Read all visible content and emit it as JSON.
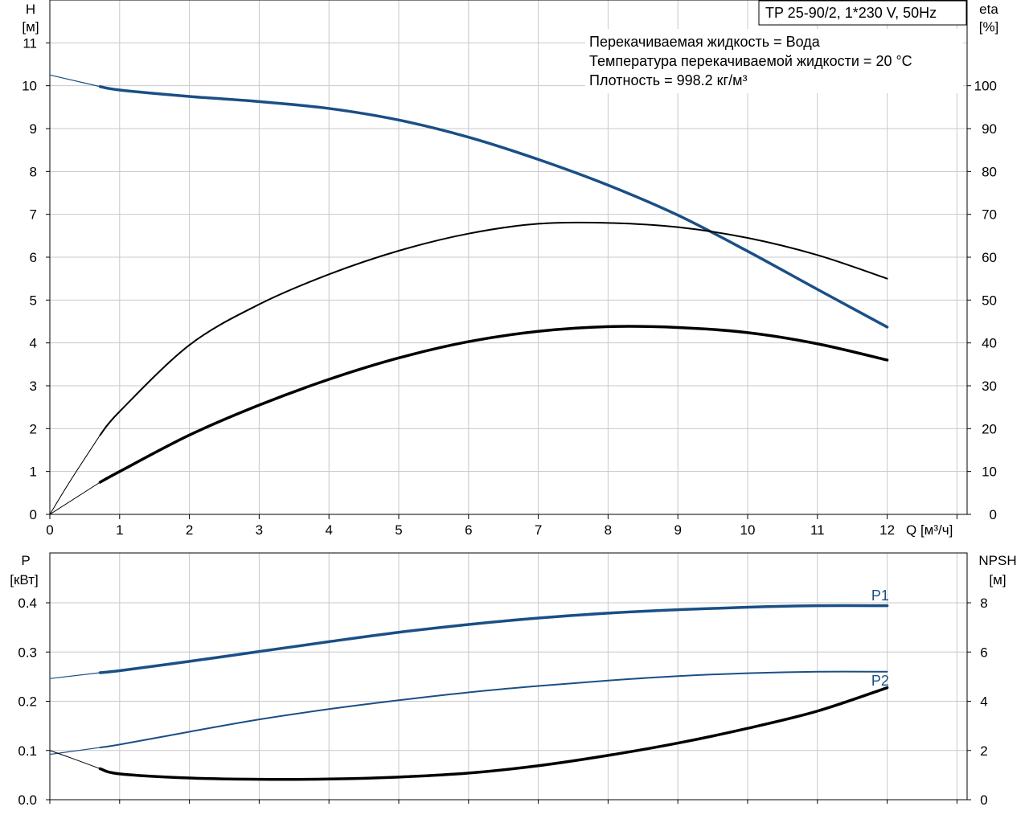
{
  "colors": {
    "blue": "#1a4f86",
    "black": "#000000",
    "grid": "#c8c8c8"
  },
  "header": {
    "model": "TP 25-90/2, 1*230 V, 50Hz",
    "info": [
      "Перекачиваемая жидкость = Вода",
      "Температура перекачиваемой жидкости = 20 °C",
      "Плотность = 998.2 кг/м³"
    ]
  },
  "chart_data": [
    {
      "type": "line",
      "name": "head-efficiency",
      "xlabel": "Q [м³/ч]",
      "ylabel_left": [
        "H",
        "[м]"
      ],
      "ylabel_right": [
        "eta",
        "[%]"
      ],
      "xlim": [
        0,
        13
      ],
      "ylim_left": [
        0,
        12
      ],
      "ylim_right": [
        0,
        120
      ],
      "x_ticks": [
        0,
        1,
        2,
        3,
        4,
        5,
        6,
        7,
        8,
        9,
        10,
        11,
        12
      ],
      "y_ticks_left": [
        0,
        1,
        2,
        3,
        4,
        5,
        6,
        7,
        8,
        9,
        10,
        11
      ],
      "y_ticks_right": [
        0,
        10,
        20,
        30,
        40,
        50,
        60,
        70,
        80,
        90,
        100
      ],
      "grid": true,
      "series": [
        {
          "key": "H_ext",
          "axis": "left",
          "color": "#1a4f86",
          "width": 1.2,
          "x": [
            0,
            0.72
          ],
          "y": [
            10.25,
            9.98
          ]
        },
        {
          "key": "H",
          "axis": "left",
          "color": "#1a4f86",
          "width": 3.5,
          "x": [
            0.72,
            1,
            2,
            3,
            4,
            5,
            6,
            7,
            8,
            9,
            10,
            11,
            12
          ],
          "y": [
            9.98,
            9.9,
            9.75,
            9.63,
            9.47,
            9.2,
            8.8,
            8.28,
            7.68,
            6.98,
            6.14,
            5.25,
            4.37
          ]
        },
        {
          "key": "eta_thin_ext",
          "axis": "right",
          "color": "#000000",
          "width": 1.0,
          "x": [
            0,
            0.3,
            0.72
          ],
          "y": [
            0,
            8,
            18.5
          ]
        },
        {
          "key": "eta_thin",
          "axis": "right",
          "color": "#000000",
          "width": 2.0,
          "x": [
            0.72,
            1,
            2,
            3,
            4,
            5,
            6,
            7,
            8,
            9,
            10,
            11,
            12
          ],
          "y": [
            18.5,
            24,
            39.5,
            49,
            56,
            61.5,
            65.5,
            67.8,
            68,
            67,
            64.5,
            60.5,
            55
          ]
        },
        {
          "key": "eta_thick_ext",
          "axis": "right",
          "color": "#000000",
          "width": 1.0,
          "x": [
            0,
            0.72
          ],
          "y": [
            0,
            7.5
          ]
        },
        {
          "key": "eta_thick",
          "axis": "right",
          "color": "#000000",
          "width": 3.5,
          "x": [
            0.72,
            1,
            2,
            3,
            4,
            5,
            6,
            7,
            8,
            9,
            10,
            11,
            12
          ],
          "y": [
            7.5,
            10,
            18.5,
            25.5,
            31.5,
            36.5,
            40.3,
            42.7,
            43.8,
            43.6,
            42.4,
            39.8,
            36
          ]
        }
      ]
    },
    {
      "type": "line",
      "name": "power-npsh",
      "xlim": [
        0,
        13
      ],
      "ylim_left": [
        0,
        0.5
      ],
      "ylim_right": [
        0,
        10
      ],
      "ylabel_left": [
        "P",
        "[кВт]"
      ],
      "ylabel_right": [
        "NPSH",
        "[м]"
      ],
      "y_ticks_left": [
        0.0,
        0.1,
        0.2,
        0.3,
        0.4
      ],
      "y_ticks_left_labels": [
        "0.0",
        "0.1",
        "0.2",
        "0.3",
        "0.4"
      ],
      "y_ticks_right": [
        0,
        2,
        4,
        6,
        8
      ],
      "grid": true,
      "series": [
        {
          "key": "P1_ext",
          "axis": "left",
          "color": "#1a4f86",
          "width": 1.2,
          "x": [
            0,
            0.72
          ],
          "y": [
            0.246,
            0.258
          ]
        },
        {
          "key": "P1",
          "axis": "left",
          "color": "#1a4f86",
          "width": 3.5,
          "name": "P1",
          "x": [
            0.72,
            1,
            2,
            3,
            4,
            5,
            6,
            7,
            8,
            9,
            10,
            11,
            12
          ],
          "y": [
            0.258,
            0.262,
            0.281,
            0.301,
            0.321,
            0.34,
            0.356,
            0.369,
            0.379,
            0.386,
            0.391,
            0.394,
            0.394
          ]
        },
        {
          "key": "P2_ext",
          "axis": "left",
          "color": "#1a4f86",
          "width": 1.2,
          "x": [
            0,
            0.72
          ],
          "y": [
            0.092,
            0.106
          ]
        },
        {
          "key": "P2",
          "axis": "left",
          "color": "#1a4f86",
          "width": 2.0,
          "name": "P2",
          "x": [
            0.72,
            1,
            2,
            3,
            4,
            5,
            6,
            7,
            8,
            9,
            10,
            11,
            12
          ],
          "y": [
            0.106,
            0.112,
            0.138,
            0.163,
            0.184,
            0.202,
            0.218,
            0.231,
            0.242,
            0.251,
            0.257,
            0.26,
            0.26
          ]
        },
        {
          "key": "NPSH_ext",
          "axis": "right",
          "color": "#000000",
          "width": 1.0,
          "x": [
            0,
            0.3,
            0.72
          ],
          "y": [
            2.0,
            1.7,
            1.26
          ]
        },
        {
          "key": "NPSH",
          "axis": "right",
          "color": "#000000",
          "width": 3.5,
          "x": [
            0.72,
            1,
            2,
            3,
            4,
            5,
            6,
            7,
            8,
            9,
            10,
            11,
            12
          ],
          "y": [
            1.26,
            1.05,
            0.88,
            0.83,
            0.84,
            0.92,
            1.08,
            1.38,
            1.8,
            2.3,
            2.9,
            3.6,
            4.55
          ]
        }
      ],
      "series_labels": [
        {
          "text": "P1",
          "x": 11.9,
          "y": 0.405
        },
        {
          "text": "P2",
          "x": 11.9,
          "y": 0.232
        }
      ]
    }
  ]
}
